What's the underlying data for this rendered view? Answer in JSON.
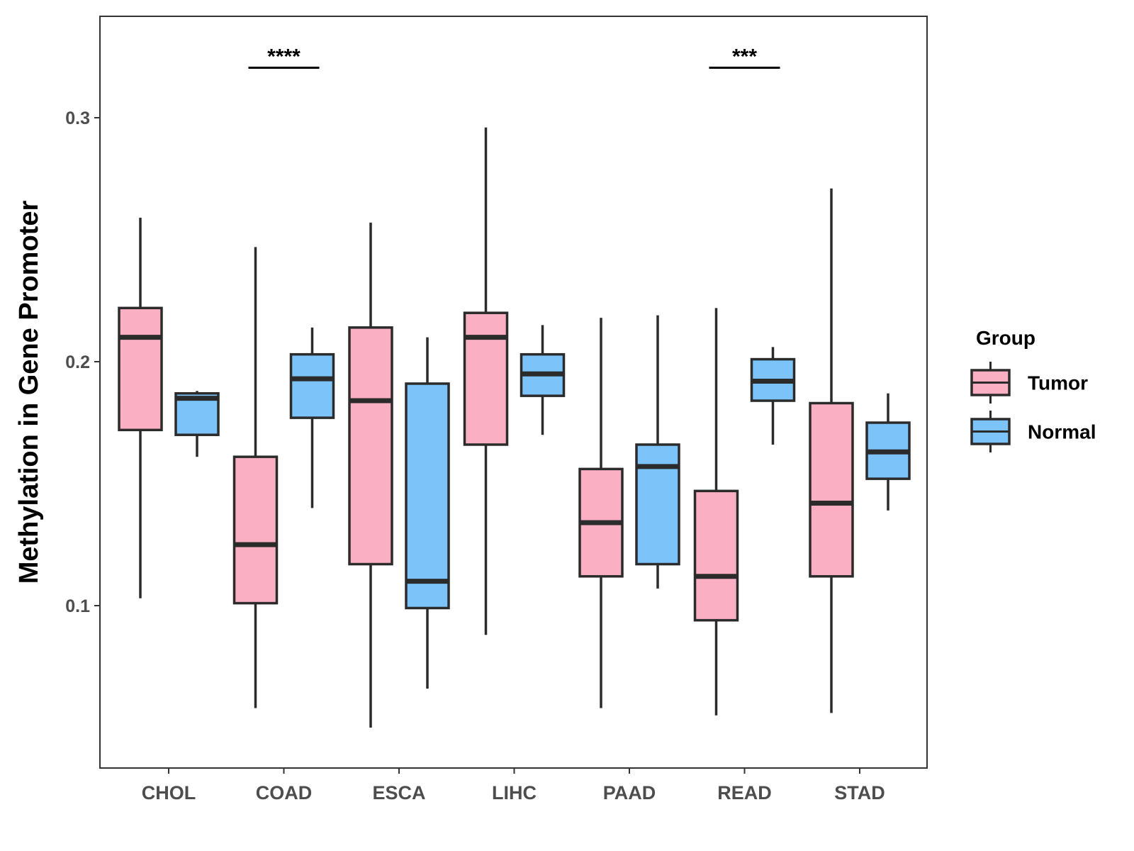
{
  "chart_data": {
    "type": "box",
    "title": "",
    "xlabel": "",
    "ylabel": "Methylation in Gene Promoter",
    "ylim": [
      0.039,
      0.339
    ],
    "yticks": [
      0.1,
      0.2,
      0.3
    ],
    "ytick_labels": [
      "0.1",
      "0.2",
      "0.3"
    ],
    "categories": [
      "CHOL",
      "COAD",
      "ESCA",
      "LIHC",
      "PAAD",
      "READ",
      "STAD"
    ],
    "legend": {
      "title": "Group",
      "placement": "right",
      "entries": [
        {
          "name": "Tumor",
          "color": "#FAB0C2"
        },
        {
          "name": "Normal",
          "color": "#7BC3F8"
        }
      ]
    },
    "series": [
      {
        "name": "Tumor",
        "color": "#FAB0C2",
        "boxes": [
          {
            "category": "CHOL",
            "min": 0.103,
            "q1": 0.172,
            "median": 0.21,
            "q3": 0.222,
            "max": 0.259
          },
          {
            "category": "COAD",
            "min": 0.058,
            "q1": 0.101,
            "median": 0.125,
            "q3": 0.161,
            "max": 0.247
          },
          {
            "category": "ESCA",
            "min": 0.05,
            "q1": 0.117,
            "median": 0.184,
            "q3": 0.214,
            "max": 0.257
          },
          {
            "category": "LIHC",
            "min": 0.088,
            "q1": 0.166,
            "median": 0.21,
            "q3": 0.22,
            "max": 0.296
          },
          {
            "category": "PAAD",
            "min": 0.058,
            "q1": 0.112,
            "median": 0.134,
            "q3": 0.156,
            "max": 0.218
          },
          {
            "category": "READ",
            "min": 0.055,
            "q1": 0.094,
            "median": 0.112,
            "q3": 0.147,
            "max": 0.222
          },
          {
            "category": "STAD",
            "min": 0.056,
            "q1": 0.112,
            "median": 0.142,
            "q3": 0.183,
            "max": 0.271
          }
        ]
      },
      {
        "name": "Normal",
        "color": "#7BC3F8",
        "boxes": [
          {
            "category": "CHOL",
            "min": 0.161,
            "q1": 0.17,
            "median": 0.185,
            "q3": 0.187,
            "max": 0.188
          },
          {
            "category": "COAD",
            "min": 0.14,
            "q1": 0.177,
            "median": 0.193,
            "q3": 0.203,
            "max": 0.214
          },
          {
            "category": "ESCA",
            "min": 0.066,
            "q1": 0.099,
            "median": 0.11,
            "q3": 0.191,
            "max": 0.21
          },
          {
            "category": "LIHC",
            "min": 0.17,
            "q1": 0.186,
            "median": 0.195,
            "q3": 0.203,
            "max": 0.215
          },
          {
            "category": "PAAD",
            "min": 0.107,
            "q1": 0.117,
            "median": 0.157,
            "q3": 0.166,
            "max": 0.219
          },
          {
            "category": "READ",
            "min": 0.166,
            "q1": 0.184,
            "median": 0.192,
            "q3": 0.201,
            "max": 0.206
          },
          {
            "category": "STAD",
            "min": 0.139,
            "q1": 0.152,
            "median": 0.163,
            "q3": 0.175,
            "max": 0.187
          }
        ]
      }
    ],
    "significance": [
      {
        "category": "COAD",
        "label": "****",
        "y": 0.3205
      },
      {
        "category": "READ",
        "label": "***",
        "y": 0.3205
      }
    ]
  }
}
